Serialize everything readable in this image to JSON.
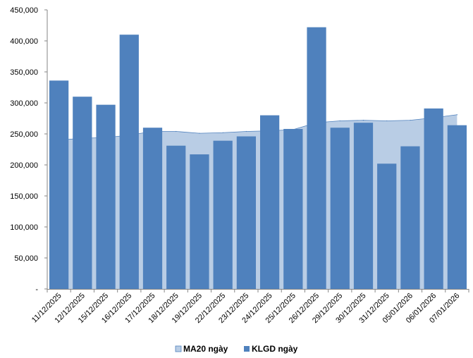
{
  "chart_data": {
    "type": "bar",
    "title": "",
    "xlabel": "",
    "ylabel": "",
    "categories": [
      "11/12/2025",
      "12/12/2025",
      "15/12/2025",
      "16/12/2025",
      "17/12/2025",
      "18/12/2025",
      "19/12/2025",
      "22/12/2025",
      "23/12/2025",
      "24/12/2025",
      "25/12/2025",
      "26/12/2025",
      "29/12/2025",
      "30/12/2025",
      "31/12/2025",
      "05/01/2026",
      "06/01/2026",
      "07/01/2026"
    ],
    "ylim": [
      0,
      450000
    ],
    "yticks": [
      0,
      50000,
      100000,
      150000,
      200000,
      250000,
      300000,
      350000,
      400000,
      450000
    ],
    "ytick_labels": [
      "-",
      "50,000",
      "100,000",
      "150,000",
      "200,000",
      "250,000",
      "300,000",
      "350,000",
      "400,000",
      "450,000"
    ],
    "grid": false,
    "legend_position": "bottom",
    "series": [
      {
        "name": "MA20 ngày",
        "type": "area",
        "color": "#b9cde5",
        "line_color": "#4f81bd",
        "values": [
          240000,
          243000,
          244000,
          248000,
          254000,
          254000,
          251000,
          252000,
          254000,
          255000,
          257000,
          268000,
          271000,
          272000,
          271000,
          272000,
          276000,
          281000
        ]
      },
      {
        "name": "KLGD ngày",
        "type": "bar",
        "color": "#4f81bd",
        "values": [
          336000,
          310000,
          297000,
          410000,
          260000,
          231000,
          217000,
          239000,
          246000,
          280000,
          258000,
          422000,
          260000,
          268000,
          202000,
          230000,
          291000,
          264000
        ]
      }
    ]
  }
}
